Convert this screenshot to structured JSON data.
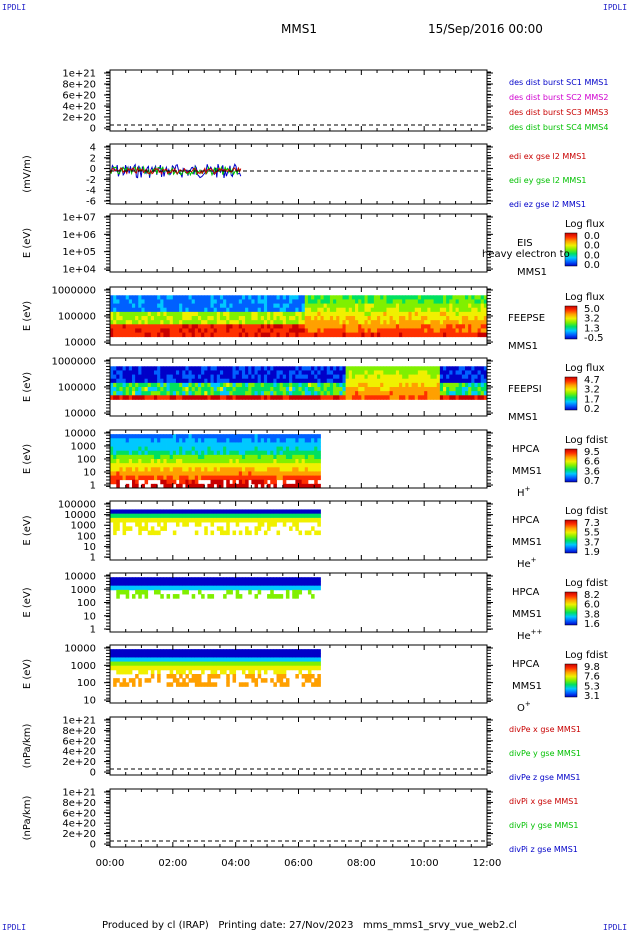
{
  "corners": {
    "top_left": "IPDLI",
    "top_right": "IPDLI",
    "bottom_left": "IPDLI",
    "bottom_right": "IPDLI"
  },
  "header": {
    "mission": "MMS1",
    "date": "15/Sep/2016 00:00"
  },
  "footer": {
    "text": "Produced by cl (IRAP)   Printing date: 27/Nov/2023   mms_mms1_srvy_vue_web2.cl"
  },
  "colors": {
    "rainbow": [
      "#0000c8",
      "#0060ff",
      "#00c8ff",
      "#00e060",
      "#80f000",
      "#f0f000",
      "#ffa000",
      "#ff3000",
      "#c80000"
    ]
  },
  "chart_data": {
    "type": "multi-panel time series / spectrogram",
    "x_ticks": [
      "00:00",
      "02:00",
      "04:00",
      "06:00",
      "08:00",
      "10:00",
      "12:00"
    ],
    "x_range_hours": [
      0,
      12
    ],
    "panels": [
      {
        "id": "p1",
        "type": "line",
        "yticks": [
          "1e+21",
          "8e+20",
          "6e+20",
          "4e+20",
          "2e+20",
          "0"
        ],
        "ylabel": "",
        "dashed_zero": true,
        "legend": [
          {
            "text": "des dist burst SC1 MMS1",
            "color": "#0000c8"
          },
          {
            "text": "des dist burst SC2 MMS2",
            "color": "#d000d0"
          },
          {
            "text": "des dist burst SC3 MMS3",
            "color": "#c80000"
          },
          {
            "text": "des dist burst SC4 MMS4",
            "color": "#00c000"
          }
        ]
      },
      {
        "id": "p2",
        "type": "line",
        "yticks": [
          "4",
          "2",
          "0",
          "-2",
          "-4",
          "-6"
        ],
        "ylabel": "(mV/m)",
        "dashed_zero": true,
        "data_end_hours": 4.2,
        "legend": [
          {
            "text": "edi ex gse l2 MMS1",
            "color": "#c80000"
          },
          {
            "text": "edi ey gse l2 MMS1",
            "color": "#00c000"
          },
          {
            "text": "edi ez gse l2 MMS1",
            "color": "#0000c8"
          }
        ]
      },
      {
        "id": "p3",
        "type": "heatmap",
        "yticks": [
          "1e+07",
          "1e+06",
          "1e+05",
          "1e+04"
        ],
        "ylabel": "E (eV)",
        "labels": [
          "EIS",
          "MMS1"
        ],
        "overlay": "heavy electron to",
        "cbar_title": "Log flux",
        "cbar_ticks": [
          "0.0",
          "0.0",
          "0.0",
          "0.0"
        ]
      },
      {
        "id": "p4",
        "type": "heatmap",
        "yticks": [
          "1000000",
          "100000",
          "10000"
        ],
        "ylabel": "E (eV)",
        "labels": [
          "FEEPSE",
          "MMS1"
        ],
        "cbar_title": "Log flux",
        "cbar_ticks": [
          "5.0",
          "3.2",
          "1.3",
          "-0.5"
        ]
      },
      {
        "id": "p5",
        "type": "heatmap",
        "yticks": [
          "1000000",
          "100000",
          "10000"
        ],
        "ylabel": "E (eV)",
        "labels": [
          "FEEPSI",
          "MMS1"
        ],
        "cbar_title": "Log flux",
        "cbar_ticks": [
          "4.7",
          "3.2",
          "1.7",
          "0.2"
        ]
      },
      {
        "id": "p6",
        "type": "heatmap",
        "yticks": [
          "10000",
          "1000",
          "100",
          "10",
          "1"
        ],
        "ylabel": "E (eV)",
        "data_end_hours": 6.7,
        "labels": [
          "HPCA",
          "MMS1",
          "H+"
        ],
        "cbar_title": "Log fdist",
        "cbar_ticks": [
          "9.5",
          "6.6",
          "3.6",
          "0.7"
        ]
      },
      {
        "id": "p7",
        "type": "heatmap",
        "yticks": [
          "100000",
          "10000",
          "1000",
          "100",
          "10",
          "1"
        ],
        "ylabel": "E (eV)",
        "data_end_hours": 6.7,
        "labels": [
          "HPCA",
          "MMS1",
          "He+"
        ],
        "cbar_title": "Log fdist",
        "cbar_ticks": [
          "7.3",
          "5.5",
          "3.7",
          "1.9"
        ]
      },
      {
        "id": "p8",
        "type": "heatmap",
        "yticks": [
          "10000",
          "1000",
          "100",
          "10",
          "1"
        ],
        "ylabel": "E (eV)",
        "data_end_hours": 6.7,
        "labels": [
          "HPCA",
          "MMS1",
          "He++"
        ],
        "cbar_title": "Log fdist",
        "cbar_ticks": [
          "8.2",
          "6.0",
          "3.8",
          "1.6"
        ]
      },
      {
        "id": "p9",
        "type": "heatmap",
        "yticks": [
          "10000",
          "1000",
          "100",
          "10"
        ],
        "ylabel": "E (eV)",
        "data_end_hours": 6.7,
        "labels": [
          "HPCA",
          "MMS1",
          "O+"
        ],
        "cbar_title": "Log fdist",
        "cbar_ticks": [
          "9.8",
          "7.6",
          "5.3",
          "3.1"
        ]
      },
      {
        "id": "p10",
        "type": "line",
        "yticks": [
          "1e+21",
          "8e+20",
          "6e+20",
          "4e+20",
          "2e+20",
          "0"
        ],
        "ylabel": "(nPa/km)",
        "dashed_zero": true,
        "legend": [
          {
            "text": "divPe x gse MMS1",
            "color": "#c80000"
          },
          {
            "text": "divPe y gse MMS1",
            "color": "#00c000"
          },
          {
            "text": "divPe z gse MMS1",
            "color": "#0000c8"
          }
        ]
      },
      {
        "id": "p11",
        "type": "line",
        "yticks": [
          "1e+21",
          "8e+20",
          "6e+20",
          "4e+20",
          "2e+20",
          "0"
        ],
        "ylabel": "(nPa/km)",
        "dashed_zero": true,
        "legend": [
          {
            "text": "divPi x gse MMS1",
            "color": "#c80000"
          },
          {
            "text": "divPi y gse MMS1",
            "color": "#00c000"
          },
          {
            "text": "divPi z gse MMS1",
            "color": "#0000c8"
          }
        ]
      }
    ]
  }
}
